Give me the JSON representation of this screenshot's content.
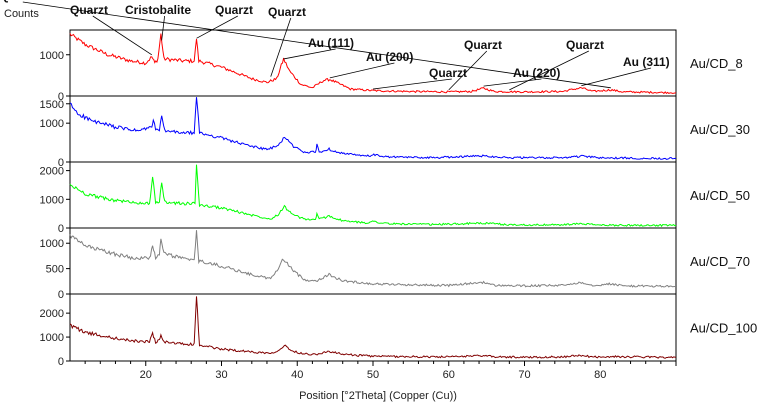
{
  "chart_data": {
    "type": "line",
    "ylabel": "Counts",
    "xlabel": "Position [°2Theta] (Copper (Cu))",
    "xlim": [
      10,
      90
    ],
    "x_ticks": [
      20,
      30,
      40,
      50,
      60,
      70,
      80
    ],
    "grid": false,
    "legend": "right",
    "series": [
      {
        "name": "Au/CD_8",
        "color": "#ff0000",
        "ylim": [
          0,
          1600
        ],
        "y_ticks": [
          0,
          1000
        ],
        "points": [
          [
            10,
            1500
          ],
          [
            12,
            1250
          ],
          [
            15,
            1000
          ],
          [
            18,
            850
          ],
          [
            20,
            800
          ],
          [
            20.8,
            950
          ],
          [
            21.2,
            800
          ],
          [
            21.6,
            900
          ],
          [
            22,
            1500
          ],
          [
            22.4,
            900
          ],
          [
            25,
            850
          ],
          [
            26.4,
            850
          ],
          [
            26.7,
            1400
          ],
          [
            27,
            850
          ],
          [
            30,
            700
          ],
          [
            34,
            420
          ],
          [
            36,
            330
          ],
          [
            37.3,
            420
          ],
          [
            38.2,
            900
          ],
          [
            39,
            600
          ],
          [
            40.5,
            280
          ],
          [
            42,
            200
          ],
          [
            43.5,
            380
          ],
          [
            44.3,
            400
          ],
          [
            45.5,
            300
          ],
          [
            47,
            170
          ],
          [
            50,
            130
          ],
          [
            55,
            110
          ],
          [
            60,
            100
          ],
          [
            63,
            110
          ],
          [
            64.6,
            190
          ],
          [
            66,
            110
          ],
          [
            70,
            100
          ],
          [
            75,
            110
          ],
          [
            77.5,
            200
          ],
          [
            79,
            110
          ],
          [
            81.4,
            150
          ],
          [
            83,
            100
          ],
          [
            90,
            80
          ]
        ]
      },
      {
        "name": "Au/CD_30",
        "color": "#0000ff",
        "ylim": [
          0,
          1700
        ],
        "y_ticks": [
          0,
          1000,
          1500
        ],
        "points": [
          [
            10,
            1500
          ],
          [
            11,
            1250
          ],
          [
            13,
            1050
          ],
          [
            16,
            900
          ],
          [
            19,
            800
          ],
          [
            20.8,
            900
          ],
          [
            21,
            1100
          ],
          [
            21.3,
            800
          ],
          [
            21.8,
            850
          ],
          [
            22.1,
            1150
          ],
          [
            22.5,
            800
          ],
          [
            25,
            750
          ],
          [
            26.4,
            750
          ],
          [
            26.7,
            1700
          ],
          [
            27.1,
            750
          ],
          [
            30,
            620
          ],
          [
            33,
            450
          ],
          [
            36,
            320
          ],
          [
            37.5,
            420
          ],
          [
            38.3,
            650
          ],
          [
            39.5,
            400
          ],
          [
            41,
            250
          ],
          [
            42.4,
            250
          ],
          [
            42.6,
            450
          ],
          [
            42.9,
            250
          ],
          [
            44.2,
            330
          ],
          [
            46,
            220
          ],
          [
            49,
            150
          ],
          [
            50.1,
            180
          ],
          [
            52,
            130
          ],
          [
            58,
            110
          ],
          [
            64.5,
            160
          ],
          [
            68,
            110
          ],
          [
            75,
            110
          ],
          [
            77.5,
            150
          ],
          [
            80,
            105
          ],
          [
            90,
            90
          ]
        ]
      },
      {
        "name": "Au/CD_50",
        "color": "#00ff00",
        "ylim": [
          0,
          2300
        ],
        "y_ticks": [
          0,
          1000,
          2000
        ],
        "points": [
          [
            10,
            1500
          ],
          [
            12,
            1200
          ],
          [
            15,
            1000
          ],
          [
            18,
            900
          ],
          [
            20.5,
            850
          ],
          [
            20.9,
            1800
          ],
          [
            21.3,
            850
          ],
          [
            21.8,
            900
          ],
          [
            22.1,
            1600
          ],
          [
            22.5,
            900
          ],
          [
            25,
            850
          ],
          [
            26.5,
            850
          ],
          [
            26.7,
            2200
          ],
          [
            27.1,
            800
          ],
          [
            30,
            700
          ],
          [
            34,
            450
          ],
          [
            36.5,
            320
          ],
          [
            37.5,
            480
          ],
          [
            38.3,
            750
          ],
          [
            39.5,
            450
          ],
          [
            41,
            300
          ],
          [
            42.4,
            300
          ],
          [
            42.6,
            480
          ],
          [
            42.9,
            300
          ],
          [
            44.2,
            420
          ],
          [
            46,
            250
          ],
          [
            49,
            180
          ],
          [
            50.1,
            230
          ],
          [
            52,
            150
          ],
          [
            58,
            120
          ],
          [
            64.5,
            170
          ],
          [
            68,
            110
          ],
          [
            75,
            110
          ],
          [
            77.5,
            150
          ],
          [
            80,
            100
          ],
          [
            90,
            90
          ]
        ]
      },
      {
        "name": "Au/CD_70",
        "color": "#808080",
        "ylim": [
          0,
          1300
        ],
        "y_ticks": [
          0,
          500,
          1000
        ],
        "points": [
          [
            10,
            1150
          ],
          [
            12,
            950
          ],
          [
            15,
            820
          ],
          [
            18,
            720
          ],
          [
            20.5,
            700
          ],
          [
            20.9,
            950
          ],
          [
            21.3,
            700
          ],
          [
            21.8,
            800
          ],
          [
            22,
            1050
          ],
          [
            22.4,
            800
          ],
          [
            25,
            700
          ],
          [
            26.4,
            650
          ],
          [
            26.7,
            1250
          ],
          [
            27,
            650
          ],
          [
            30,
            550
          ],
          [
            34,
            380
          ],
          [
            36.5,
            300
          ],
          [
            37.5,
            500
          ],
          [
            38.2,
            700
          ],
          [
            39.5,
            450
          ],
          [
            41,
            280
          ],
          [
            42.5,
            260
          ],
          [
            44.2,
            380
          ],
          [
            46,
            260
          ],
          [
            50,
            200
          ],
          [
            55,
            180
          ],
          [
            60,
            170
          ],
          [
            64.6,
            230
          ],
          [
            66,
            170
          ],
          [
            70,
            160
          ],
          [
            75,
            170
          ],
          [
            77.5,
            230
          ],
          [
            79,
            170
          ],
          [
            81.5,
            200
          ],
          [
            83,
            160
          ],
          [
            90,
            150
          ]
        ]
      },
      {
        "name": "Au/CD_100",
        "color": "#800000",
        "ylim": [
          0,
          2800
        ],
        "y_ticks": [
          0,
          1000,
          2000
        ],
        "points": [
          [
            10,
            1500
          ],
          [
            12,
            1200
          ],
          [
            15,
            1000
          ],
          [
            18,
            850
          ],
          [
            20.5,
            800
          ],
          [
            20.9,
            1150
          ],
          [
            21.3,
            800
          ],
          [
            21.8,
            850
          ],
          [
            22,
            1100
          ],
          [
            22.4,
            800
          ],
          [
            25,
            700
          ],
          [
            26.4,
            700
          ],
          [
            26.7,
            2700
          ],
          [
            27.1,
            650
          ],
          [
            30,
            500
          ],
          [
            34,
            380
          ],
          [
            36.5,
            330
          ],
          [
            37.5,
            450
          ],
          [
            38.3,
            650
          ],
          [
            39.5,
            400
          ],
          [
            41,
            300
          ],
          [
            42.5,
            280
          ],
          [
            44.2,
            400
          ],
          [
            46,
            280
          ],
          [
            50,
            200
          ],
          [
            55,
            180
          ],
          [
            60,
            170
          ],
          [
            64.6,
            230
          ],
          [
            66,
            170
          ],
          [
            70,
            160
          ],
          [
            75,
            170
          ],
          [
            77.5,
            230
          ],
          [
            79,
            170
          ],
          [
            82,
            180
          ],
          [
            90,
            150
          ]
        ]
      }
    ],
    "annotations": [
      {
        "text": "Quarzt",
        "target": [
          20.8,
          950
        ]
      },
      {
        "text": "Cristobalite",
        "target": [
          22.1,
          1300
        ]
      },
      {
        "text": "Quarzt",
        "target": [
          26.7,
          1350
        ]
      },
      {
        "text": "Quarzt",
        "target": [
          36.5,
          420
        ]
      },
      {
        "text": "Au (111)",
        "target": [
          38.2,
          850
        ]
      },
      {
        "text": "Au (200)",
        "target": [
          44.3,
          390
        ]
      },
      {
        "text": "Quarzt",
        "target": [
          50,
          120
        ]
      },
      {
        "text": "Quarzt",
        "target": [
          60,
          100
        ]
      },
      {
        "text": "Au (220)",
        "target": [
          64.6,
          190
        ]
      },
      {
        "text": "Quarzt",
        "target": [
          68,
          100
        ]
      },
      {
        "text": "Au (311)",
        "target": [
          77.5,
          200
        ]
      },
      {
        "text": "Quarzt",
        "target": [
          81.4,
          150
        ]
      }
    ]
  }
}
